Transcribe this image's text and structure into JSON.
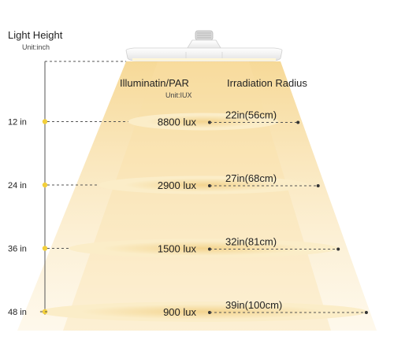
{
  "header": {
    "light_height_title": "Light Height",
    "light_height_unit": "Unit:inch",
    "illumination_title": "Illuminatin/PAR",
    "illumination_unit": "Unit:IUX",
    "radius_title": "Irradiation Radius"
  },
  "levels": [
    {
      "height_label": "12 in",
      "lux_label": "8800 lux",
      "radius_label": "22in(56cm)",
      "height_in": 12,
      "lux": 8800,
      "radius_in": 22,
      "radius_cm": 56
    },
    {
      "height_label": "24 in",
      "lux_label": "2900 lux",
      "radius_label": "27in(68cm)",
      "height_in": 24,
      "lux": 2900,
      "radius_in": 27,
      "radius_cm": 68
    },
    {
      "height_label": "36 in",
      "lux_label": "1500 lux",
      "radius_label": "32in(81cm)",
      "height_in": 36,
      "lux": 1500,
      "radius_in": 32,
      "radius_cm": 81
    },
    {
      "height_label": "48 in",
      "lux_label": "900 lux",
      "radius_label": "39in(100cm)",
      "height_in": 48,
      "lux": 900,
      "radius_in": 39,
      "radius_cm": 100
    }
  ],
  "colors": {
    "beam_top": "#f6d792",
    "beam_bottom": "#fdf3dc",
    "ellipse_center": "#f3d48f",
    "ellipse_edge": "#fbedc8",
    "axis_dot": "#f2cf3a",
    "line": "#555555"
  }
}
